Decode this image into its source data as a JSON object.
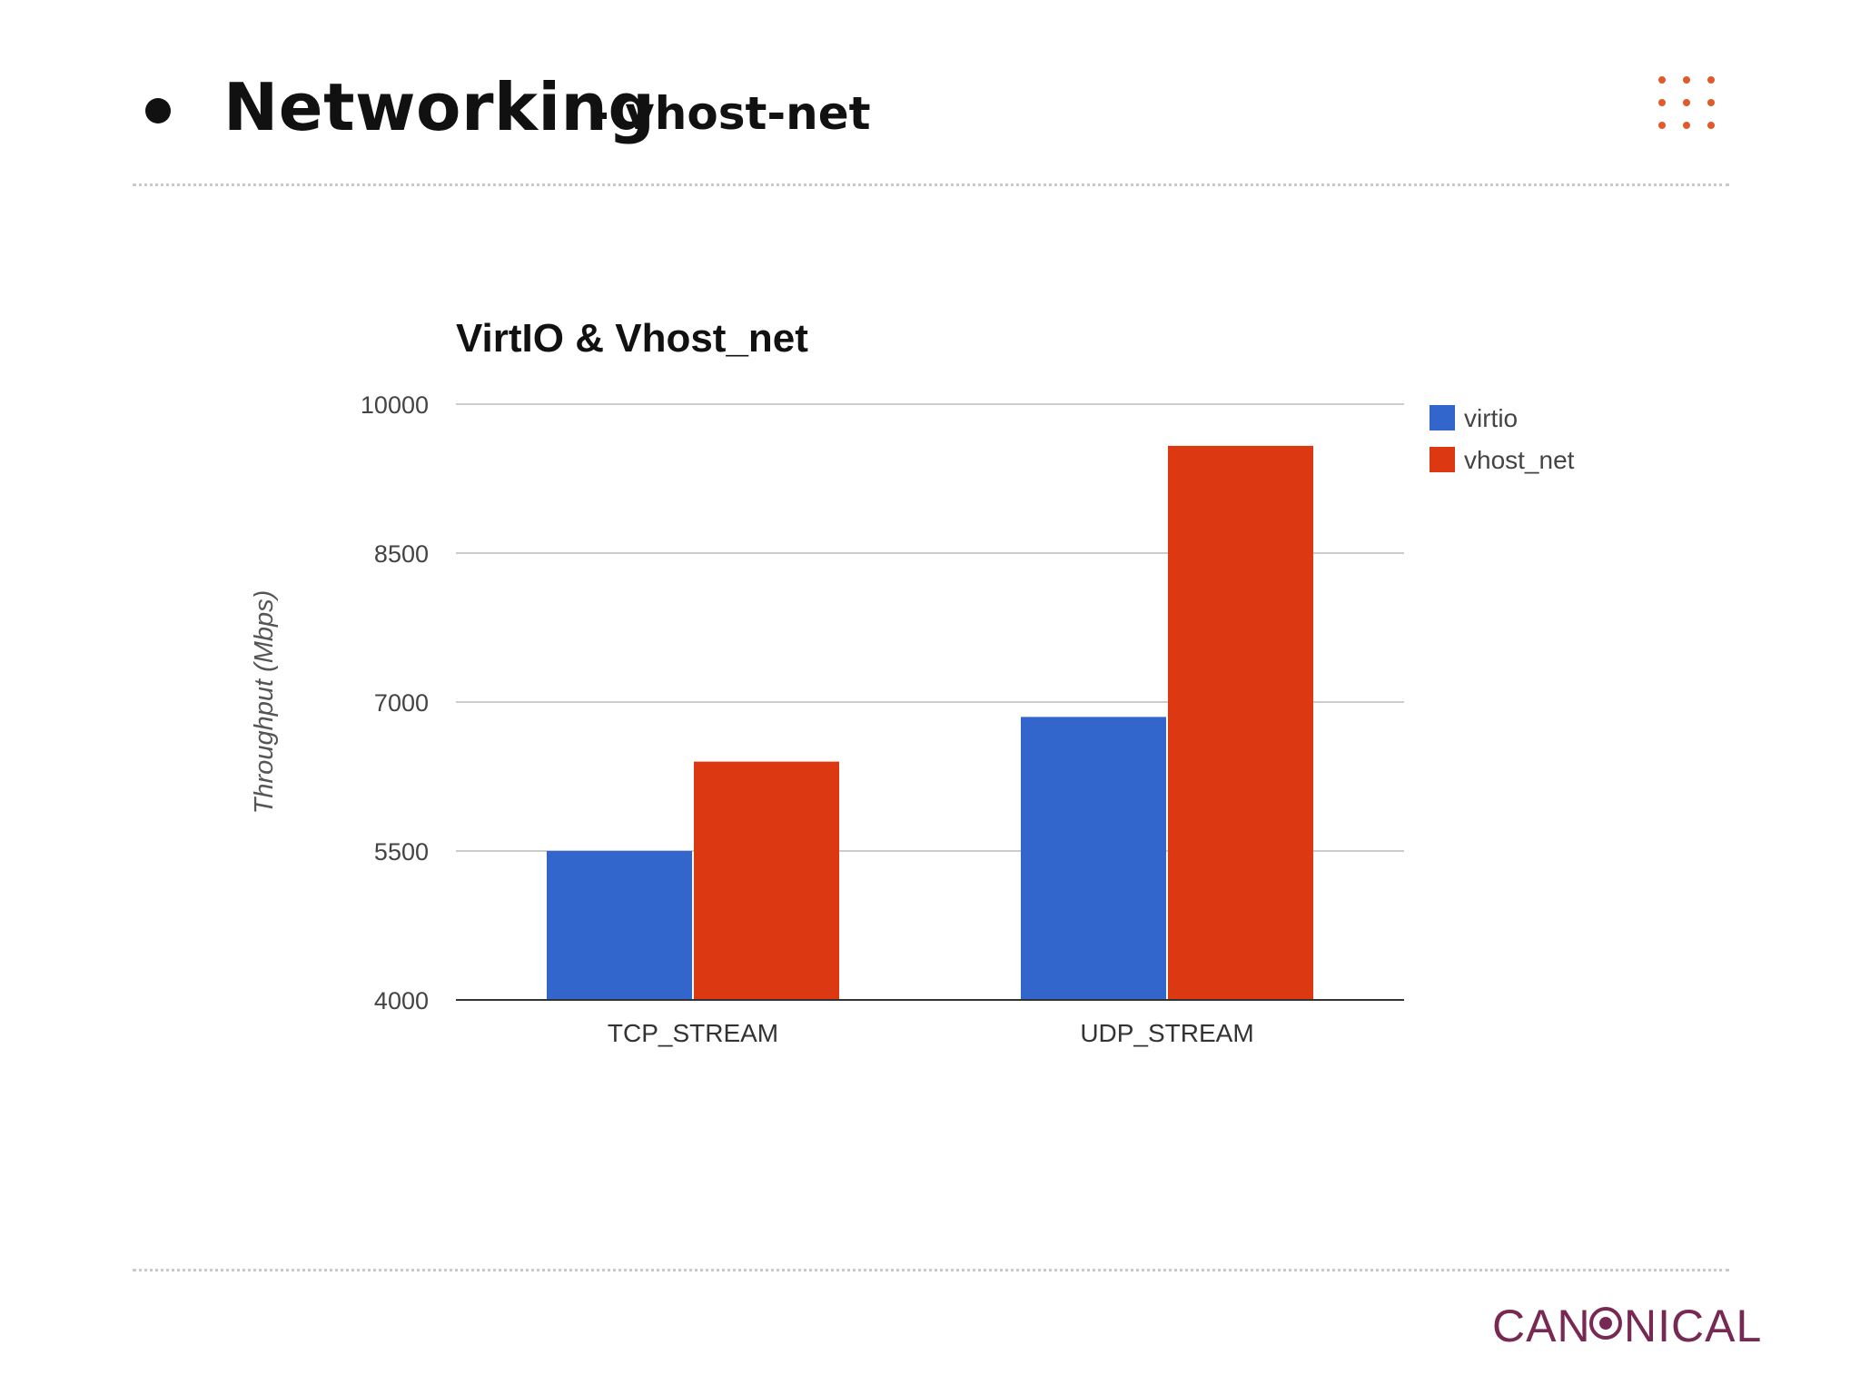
{
  "slide": {
    "title": "Networking",
    "subtitle": "vhost-net"
  },
  "footer": {
    "logo_left": "CAN",
    "logo_right": "NICAL"
  },
  "colors": {
    "accent": "#e05a2a",
    "brand": "#772953",
    "virtio": "#3366cc",
    "vhost_net": "#dc3912"
  },
  "chart_data": {
    "type": "bar",
    "title": "VirtIO & Vhost_net",
    "ylabel": "Throughput (Mbps)",
    "xlabel": "",
    "categories": [
      "TCP_STREAM",
      "UDP_STREAM"
    ],
    "series": [
      {
        "name": "virtio",
        "color": "#3366cc",
        "values": [
          5500,
          6850
        ]
      },
      {
        "name": "vhost_net",
        "color": "#dc3912",
        "values": [
          6400,
          9580
        ]
      }
    ],
    "ylim": [
      4000,
      10000
    ],
    "yticks": [
      4000,
      5500,
      7000,
      8500,
      10000
    ],
    "grid": true,
    "legend": "right"
  }
}
